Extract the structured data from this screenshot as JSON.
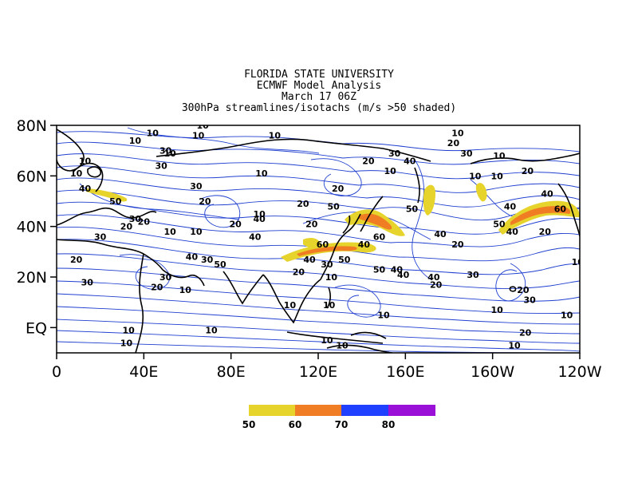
{
  "titles": {
    "line1": "FLORIDA STATE UNIVERSITY",
    "line2": "ECMWF Model Analysis",
    "line3": "March 17 06Z",
    "line4": "300hPa streamlines/isotachs (m/s >50 shaded)"
  },
  "axes": {
    "x_ticks": [
      {
        "lon": 0,
        "label": "0"
      },
      {
        "lon": 40,
        "label": "40E"
      },
      {
        "lon": 80,
        "label": "80E"
      },
      {
        "lon": 120,
        "label": "120E"
      },
      {
        "lon": 160,
        "label": "160E"
      },
      {
        "lon": 200,
        "label": "160W"
      },
      {
        "lon": 240,
        "label": "120W"
      }
    ],
    "y_ticks": [
      {
        "lat": 80,
        "label": "80N"
      },
      {
        "lat": 60,
        "label": "60N"
      },
      {
        "lat": 40,
        "label": "40N"
      },
      {
        "lat": 20,
        "label": "20N"
      },
      {
        "lat": 0,
        "label": "EQ"
      }
    ],
    "lon_range": [
      0,
      240
    ],
    "lat_range": [
      -10,
      80
    ]
  },
  "colors": {
    "c50": "#e6d32c",
    "c60": "#f07d23",
    "c70": "#2040ff",
    "c80": "#9b10d6",
    "streamline": "#1f3fd0",
    "isotach": "#000000"
  },
  "legend": {
    "labels": [
      "50",
      "60",
      "70",
      "80"
    ]
  },
  "chart_data": {
    "type": "map",
    "variable": "300hPa wind speed (m/s)",
    "shading_threshold": 50,
    "jet_cores": [
      {
        "lon": 25,
        "lat": 45,
        "speed_class": 50
      },
      {
        "lon": 125,
        "lat": 30,
        "speed_class": 60
      },
      {
        "lon": 147,
        "lat": 42,
        "speed_class": 60
      },
      {
        "lon": 167,
        "lat": 52,
        "speed_class": 50
      },
      {
        "lon": 191,
        "lat": 55,
        "speed_class": 50
      },
      {
        "lon": 218,
        "lat": 45,
        "speed_class": 60
      }
    ],
    "isotach_labels": [
      {
        "lon": 13,
        "lat": 66,
        "value": "10"
      },
      {
        "lon": 36,
        "lat": 74,
        "value": "10"
      },
      {
        "lon": 44,
        "lat": 77,
        "value": "10"
      },
      {
        "lon": 65,
        "lat": 76,
        "value": "10"
      },
      {
        "lon": 67,
        "lat": 80,
        "value": "10"
      },
      {
        "lon": 100,
        "lat": 76,
        "value": "10"
      },
      {
        "lon": 9,
        "lat": 61,
        "value": "10"
      },
      {
        "lon": 13,
        "lat": 55,
        "value": "40"
      },
      {
        "lon": 27,
        "lat": 50,
        "value": "50"
      },
      {
        "lon": 32,
        "lat": 40,
        "value": "20"
      },
      {
        "lon": 36,
        "lat": 43,
        "value": "30"
      },
      {
        "lon": 40,
        "lat": 42,
        "value": "20"
      },
      {
        "lon": 50,
        "lat": 70,
        "value": "30"
      },
      {
        "lon": 48,
        "lat": 64,
        "value": "30"
      },
      {
        "lon": 52,
        "lat": 69,
        "value": "10"
      },
      {
        "lon": 64,
        "lat": 56,
        "value": "30"
      },
      {
        "lon": 68,
        "lat": 50,
        "value": "20"
      },
      {
        "lon": 52,
        "lat": 38,
        "value": "10"
      },
      {
        "lon": 64,
        "lat": 38,
        "value": "10"
      },
      {
        "lon": 82,
        "lat": 41,
        "value": "20"
      },
      {
        "lon": 20,
        "lat": 36,
        "value": "30"
      },
      {
        "lon": 9,
        "lat": 27,
        "value": "20"
      },
      {
        "lon": 14,
        "lat": 18,
        "value": "30"
      },
      {
        "lon": 62,
        "lat": 28,
        "value": "40"
      },
      {
        "lon": 69,
        "lat": 27,
        "value": "30"
      },
      {
        "lon": 75,
        "lat": 25,
        "value": "50"
      },
      {
        "lon": 50,
        "lat": 20,
        "value": "30"
      },
      {
        "lon": 46,
        "lat": 16,
        "value": "20"
      },
      {
        "lon": 59,
        "lat": 15,
        "value": "10"
      },
      {
        "lon": 91,
        "lat": 36,
        "value": "40"
      },
      {
        "lon": 94,
        "lat": 61,
        "value": "10"
      },
      {
        "lon": 93,
        "lat": 45,
        "value": "10"
      },
      {
        "lon": 93,
        "lat": 43,
        "value": "40"
      },
      {
        "lon": 113,
        "lat": 49,
        "value": "20"
      },
      {
        "lon": 127,
        "lat": 48,
        "value": "50"
      },
      {
        "lon": 129,
        "lat": 55,
        "value": "20"
      },
      {
        "lon": 117,
        "lat": 41,
        "value": "20"
      },
      {
        "lon": 122,
        "lat": 33,
        "value": "60"
      },
      {
        "lon": 116,
        "lat": 27,
        "value": "40"
      },
      {
        "lon": 124,
        "lat": 25,
        "value": "30"
      },
      {
        "lon": 111,
        "lat": 22,
        "value": "20"
      },
      {
        "lon": 126,
        "lat": 20,
        "value": "10"
      },
      {
        "lon": 132,
        "lat": 27,
        "value": "50"
      },
      {
        "lon": 141,
        "lat": 33,
        "value": "40"
      },
      {
        "lon": 148,
        "lat": 36,
        "value": "60"
      },
      {
        "lon": 148,
        "lat": 23,
        "value": "50"
      },
      {
        "lon": 156,
        "lat": 23,
        "value": "40"
      },
      {
        "lon": 159,
        "lat": 21,
        "value": "40"
      },
      {
        "lon": 143,
        "lat": 66,
        "value": "20"
      },
      {
        "lon": 155,
        "lat": 69,
        "value": "30"
      },
      {
        "lon": 153,
        "lat": 62,
        "value": "10"
      },
      {
        "lon": 162,
        "lat": 66,
        "value": "40"
      },
      {
        "lon": 163,
        "lat": 47,
        "value": "50"
      },
      {
        "lon": 176,
        "lat": 37,
        "value": "40"
      },
      {
        "lon": 173,
        "lat": 20,
        "value": "40"
      },
      {
        "lon": 174,
        "lat": 17,
        "value": "20"
      },
      {
        "lon": 184,
        "lat": 33,
        "value": "20"
      },
      {
        "lon": 191,
        "lat": 21,
        "value": "30"
      },
      {
        "lon": 184,
        "lat": 77,
        "value": "10"
      },
      {
        "lon": 182,
        "lat": 73,
        "value": "20"
      },
      {
        "lon": 188,
        "lat": 69,
        "value": "30"
      },
      {
        "lon": 192,
        "lat": 60,
        "value": "10"
      },
      {
        "lon": 203,
        "lat": 68,
        "value": "10"
      },
      {
        "lon": 202,
        "lat": 60,
        "value": "10"
      },
      {
        "lon": 216,
        "lat": 62,
        "value": "20"
      },
      {
        "lon": 208,
        "lat": 48,
        "value": "40"
      },
      {
        "lon": 225,
        "lat": 53,
        "value": "40"
      },
      {
        "lon": 231,
        "lat": 47,
        "value": "60"
      },
      {
        "lon": 203,
        "lat": 41,
        "value": "50"
      },
      {
        "lon": 209,
        "lat": 38,
        "value": "40"
      },
      {
        "lon": 224,
        "lat": 38,
        "value": "20"
      },
      {
        "lon": 239,
        "lat": 26,
        "value": "10"
      },
      {
        "lon": 214,
        "lat": 15,
        "value": "20"
      },
      {
        "lon": 217,
        "lat": 11,
        "value": "30"
      },
      {
        "lon": 202,
        "lat": 7,
        "value": "10"
      },
      {
        "lon": 234,
        "lat": 5,
        "value": "10"
      },
      {
        "lon": 215,
        "lat": -2,
        "value": "20"
      },
      {
        "lon": 210,
        "lat": -7,
        "value": "10"
      },
      {
        "lon": 33,
        "lat": -1,
        "value": "10"
      },
      {
        "lon": 32,
        "lat": -6,
        "value": "10"
      },
      {
        "lon": 71,
        "lat": -1,
        "value": "10"
      },
      {
        "lon": 107,
        "lat": 9,
        "value": "10"
      },
      {
        "lon": 125,
        "lat": 9,
        "value": "10"
      },
      {
        "lon": 150,
        "lat": 5,
        "value": "10"
      },
      {
        "lon": 131,
        "lat": -7,
        "value": "10"
      },
      {
        "lon": 124,
        "lat": -5,
        "value": "10"
      }
    ]
  }
}
